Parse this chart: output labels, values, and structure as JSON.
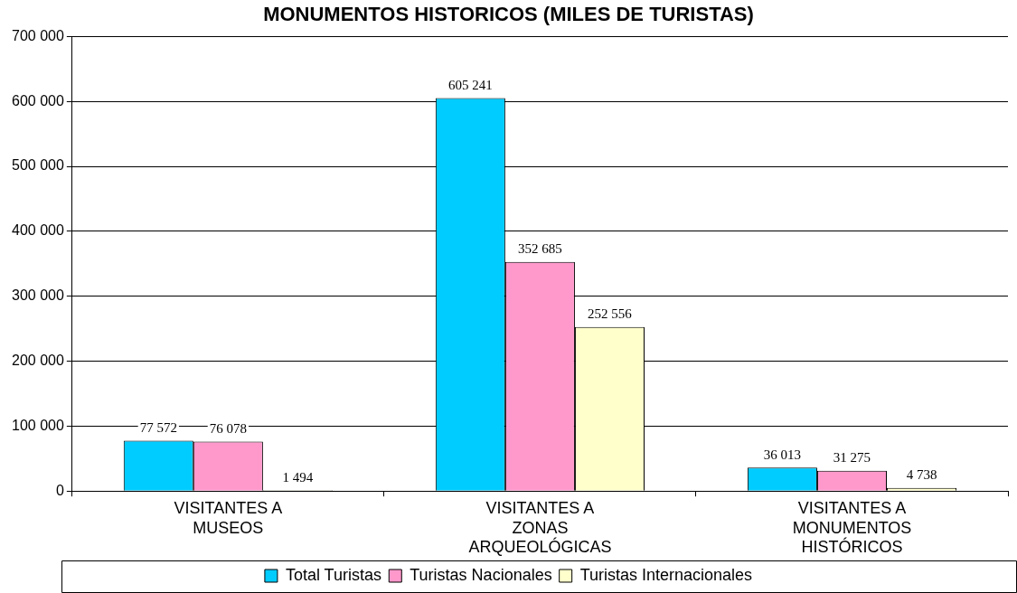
{
  "chart_data": {
    "type": "bar",
    "title": "MONUMENTOS HISTORICOS (MILES DE TURISTAS)",
    "categories": [
      "VISITANTES A MUSEOS",
      "VISITANTES A ZONAS ARQUEOLÓGICAS",
      "VISITANTES A MONUMENTOS HISTÓRICOS"
    ],
    "series": [
      {
        "name": "Total Turistas",
        "color": "#00ccff",
        "values": [
          77572,
          605241,
          36013
        ],
        "value_labels": [
          "77 572",
          "605 241",
          "36 013"
        ]
      },
      {
        "name": "Turistas Nacionales",
        "color": "#ff99cc",
        "values": [
          76078,
          352685,
          31275
        ],
        "value_labels": [
          "76 078",
          "352 685",
          "31 275"
        ]
      },
      {
        "name": "Turistas Internacionales",
        "color": "#ffffcc",
        "values": [
          1494,
          252556,
          4738
        ],
        "value_labels": [
          "1 494",
          "252 556",
          "4 738"
        ]
      }
    ],
    "ylim": [
      0,
      700000
    ],
    "yticks": [
      {
        "value": 0,
        "label": "0"
      },
      {
        "value": 100000,
        "label": "100 000"
      },
      {
        "value": 200000,
        "label": "200 000"
      },
      {
        "value": 300000,
        "label": "300 000"
      },
      {
        "value": 400000,
        "label": "400 000"
      },
      {
        "value": 500000,
        "label": "500 000"
      },
      {
        "value": 600000,
        "label": "600 000"
      },
      {
        "value": 700000,
        "label": "700 000"
      }
    ],
    "grid": "y",
    "legend": "bottom"
  }
}
